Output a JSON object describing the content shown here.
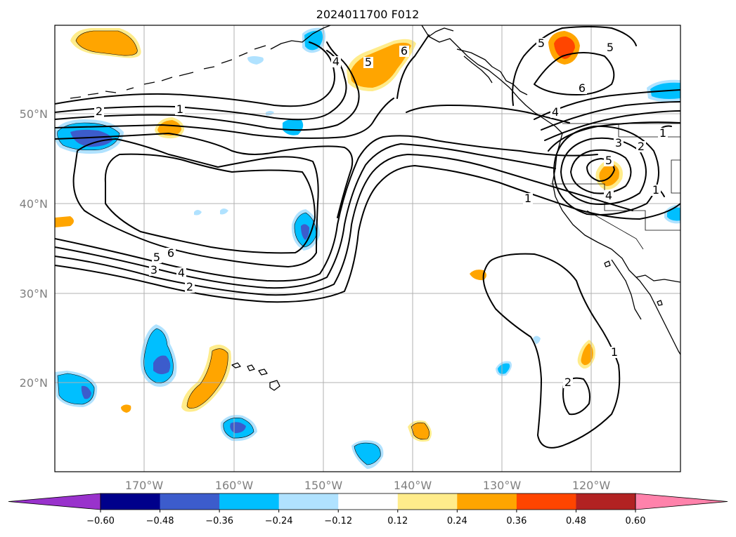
{
  "title": "2024011700 F012",
  "axes": {
    "lat_labels": [
      "50°N",
      "40°N",
      "30°N",
      "20°N"
    ],
    "lon_labels": [
      "170°W",
      "160°W",
      "150°W",
      "140°W",
      "130°W",
      "120°W"
    ],
    "grid": true
  },
  "colorbar": {
    "ticks": [
      "−0.60",
      "−0.48",
      "−0.36",
      "−0.24",
      "−0.12",
      "0.12",
      "0.24",
      "0.36",
      "0.48",
      "0.60"
    ],
    "colors": [
      "#9932cc",
      "#00008b",
      "#3c5ccc",
      "#00bfff",
      "#b0e2ff",
      "#ffffff",
      "#ffec8b",
      "#ffa500",
      "#ff4500",
      "#b22222",
      "#ff82ab"
    ],
    "extend": "both"
  },
  "contour_labels": [
    {
      "text": "2"
    },
    {
      "text": "1"
    },
    {
      "text": "4"
    },
    {
      "text": "5"
    },
    {
      "text": "6"
    },
    {
      "text": "5"
    },
    {
      "text": "6"
    },
    {
      "text": "3"
    },
    {
      "text": "4"
    },
    {
      "text": "2"
    },
    {
      "text": "5"
    },
    {
      "text": "6"
    },
    {
      "text": "5"
    },
    {
      "text": "4"
    },
    {
      "text": "1"
    },
    {
      "text": "3"
    },
    {
      "text": "2"
    },
    {
      "text": "5"
    },
    {
      "text": "4"
    },
    {
      "text": "1"
    },
    {
      "text": "1"
    },
    {
      "text": "1"
    },
    {
      "text": "2"
    }
  ]
}
